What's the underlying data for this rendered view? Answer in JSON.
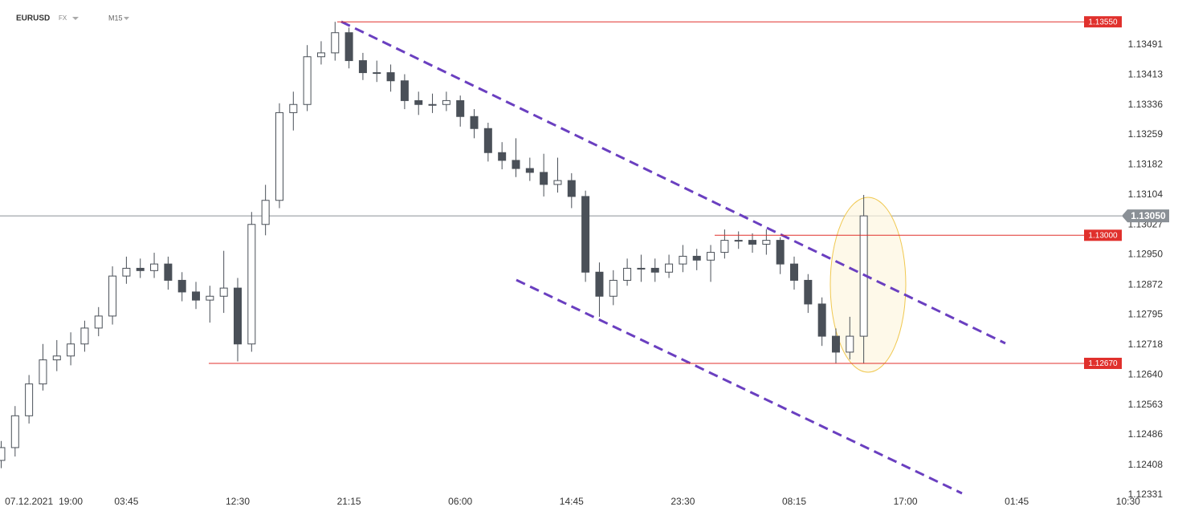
{
  "chart_data": {
    "type": "candlestick",
    "symbol": "EURUSD",
    "market": "FX",
    "timeframe": "M15",
    "categories": [
      null,
      null,
      "07.12.2021",
      null,
      null,
      "19:00",
      null,
      null,
      null,
      "03:45",
      null,
      null,
      null,
      null,
      null,
      null,
      null,
      "12:30",
      null,
      null,
      null,
      null,
      null,
      null,
      null,
      "21:15",
      null,
      null,
      null,
      null,
      null,
      null,
      null,
      "06:00",
      null,
      null,
      null,
      null,
      null,
      null,
      null,
      "14:45",
      null,
      null,
      null,
      null,
      null,
      null,
      null,
      "23:30",
      null,
      null,
      null,
      null,
      null,
      null,
      null,
      "08:15",
      null,
      null,
      null,
      null,
      null,
      null,
      null,
      "17:00",
      null,
      null,
      null,
      null,
      null,
      null,
      null,
      "01:45",
      null,
      null,
      null,
      null,
      null,
      null,
      null,
      "10:30"
    ],
    "open": [
      1.1242,
      1.12453,
      1.12535,
      1.12617,
      1.12679,
      1.12689,
      1.1272,
      1.12761,
      1.12792,
      1.12895,
      1.12915,
      1.12909,
      1.12926,
      1.12884,
      1.12854,
      1.12833,
      1.12843,
      1.12864,
      1.1272,
      1.13028,
      1.1309,
      1.13316,
      1.13337,
      1.1346,
      1.1347,
      1.13522,
      1.1345,
      1.13419,
      1.13419,
      1.13398,
      1.13347,
      1.13337,
      1.13337,
      1.13347,
      1.13306,
      1.13275,
      1.13213,
      1.13193,
      1.13172,
      1.13162,
      1.13131,
      1.13141,
      1.131,
      1.12905,
      1.12843,
      1.12884,
      1.12915,
      1.12915,
      1.12905,
      1.12926,
      1.12946,
      1.12936,
      1.12956,
      1.12987,
      1.12987,
      1.12977,
      1.12987,
      1.12926,
      1.12884,
      1.12823,
      1.1274,
      1.12699,
      1.1274,
      null,
      null,
      null,
      null,
      null,
      null,
      null,
      null,
      null,
      null,
      null,
      null,
      null,
      null,
      null,
      null,
      null,
      null,
      null
    ],
    "high": [
      1.1247,
      1.1256,
      1.1264,
      1.1272,
      1.1273,
      1.1275,
      1.1278,
      1.12815,
      1.1292,
      1.12945,
      1.1294,
      1.12955,
      1.12945,
      1.12905,
      1.1288,
      1.1287,
      1.1296,
      1.1289,
      1.1306,
      1.1313,
      1.1334,
      1.1337,
      1.1349,
      1.135,
      1.1355,
      1.13535,
      1.1347,
      1.1345,
      1.1344,
      1.13415,
      1.1337,
      1.13365,
      1.1337,
      1.1336,
      1.13325,
      1.1329,
      1.1324,
      1.1325,
      1.132,
      1.1321,
      1.132,
      1.1316,
      1.13115,
      1.1293,
      1.1291,
      1.1294,
      1.1295,
      1.1294,
      1.1295,
      1.12975,
      1.12965,
      1.12975,
      1.13015,
      1.1301,
      1.13005,
      1.13015,
      1.12995,
      1.12945,
      1.129,
      1.1284,
      1.1276,
      1.1279,
      1.13104,
      null,
      null,
      null,
      null,
      null,
      null,
      null,
      null,
      null,
      null,
      null,
      null,
      null,
      null,
      null,
      null,
      null,
      null,
      null
    ],
    "low": [
      1.124,
      1.1243,
      1.12515,
      1.126,
      1.1265,
      1.12665,
      1.127,
      1.1274,
      1.1277,
      1.12875,
      1.1289,
      1.1289,
      1.1286,
      1.1283,
      1.1281,
      1.12775,
      1.128,
      1.12675,
      1.127,
      1.13,
      1.1307,
      1.1327,
      1.1332,
      1.1344,
      1.1345,
      1.1343,
      1.134,
      1.13395,
      1.1337,
      1.13325,
      1.1331,
      1.13315,
      1.1332,
      1.1328,
      1.1325,
      1.1319,
      1.1317,
      1.1315,
      1.1314,
      1.131,
      1.1311,
      1.1307,
      1.1288,
      1.1279,
      1.1282,
      1.1287,
      1.1288,
      1.1288,
      1.1289,
      1.12905,
      1.1291,
      1.1288,
      1.1294,
      1.12965,
      1.12955,
      1.1295,
      1.129,
      1.1286,
      1.128,
      1.12715,
      1.1267,
      1.1268,
      1.1267,
      null,
      null,
      null,
      null,
      null,
      null,
      null,
      null,
      null,
      null,
      null,
      null,
      null,
      null,
      null,
      null,
      null,
      null,
      null
    ],
    "close": [
      1.12453,
      1.12535,
      1.12617,
      1.12679,
      1.12689,
      1.1272,
      1.12761,
      1.12792,
      1.12895,
      1.12915,
      1.12909,
      1.12926,
      1.12884,
      1.12854,
      1.12833,
      1.12843,
      1.12864,
      1.1272,
      1.13028,
      1.1309,
      1.13316,
      1.13337,
      1.1346,
      1.1347,
      1.13522,
      1.1345,
      1.13419,
      1.13419,
      1.13398,
      1.13347,
      1.13337,
      1.13337,
      1.13347,
      1.13306,
      1.13275,
      1.13213,
      1.13193,
      1.13172,
      1.13162,
      1.13131,
      1.13141,
      1.131,
      1.12905,
      1.12843,
      1.12884,
      1.12915,
      1.12915,
      1.12905,
      1.12926,
      1.12946,
      1.12936,
      1.12956,
      1.12987,
      1.12987,
      1.12977,
      1.12987,
      1.12926,
      1.12884,
      1.12823,
      1.1274,
      1.12699,
      1.1274,
      1.1305,
      null,
      null,
      null,
      null,
      null,
      null,
      null,
      null,
      null,
      null,
      null,
      null,
      null,
      null,
      null,
      null,
      null,
      null,
      null
    ],
    "up_color": "#ffffff",
    "down_color": "#4a5058",
    "wick_color": "#4a5058",
    "ylim": [
      1.123,
      1.136
    ],
    "yticks": [
      1.13491,
      1.13413,
      1.13336,
      1.13259,
      1.13182,
      1.13104,
      1.13027,
      {
        "value": 1.1295,
        "label": "1.12950"
      },
      1.12872,
      1.12795,
      1.12718,
      {
        "value": 1.1264,
        "label": "1.12640"
      },
      1.12563,
      1.12486,
      1.12408,
      1.12331
    ],
    "levels": [
      {
        "value": 1.1355,
        "label": "1.13550",
        "color": "#e0302c"
      },
      {
        "value": 1.13,
        "label": "1.13000",
        "color": "#e0302c"
      },
      {
        "value": 1.1267,
        "label": "1.12670",
        "color": "#e0302c"
      }
    ],
    "last_price": {
      "value": 1.1305,
      "label": "1.13050",
      "color": "#8a9096"
    },
    "grid": false
  }
}
